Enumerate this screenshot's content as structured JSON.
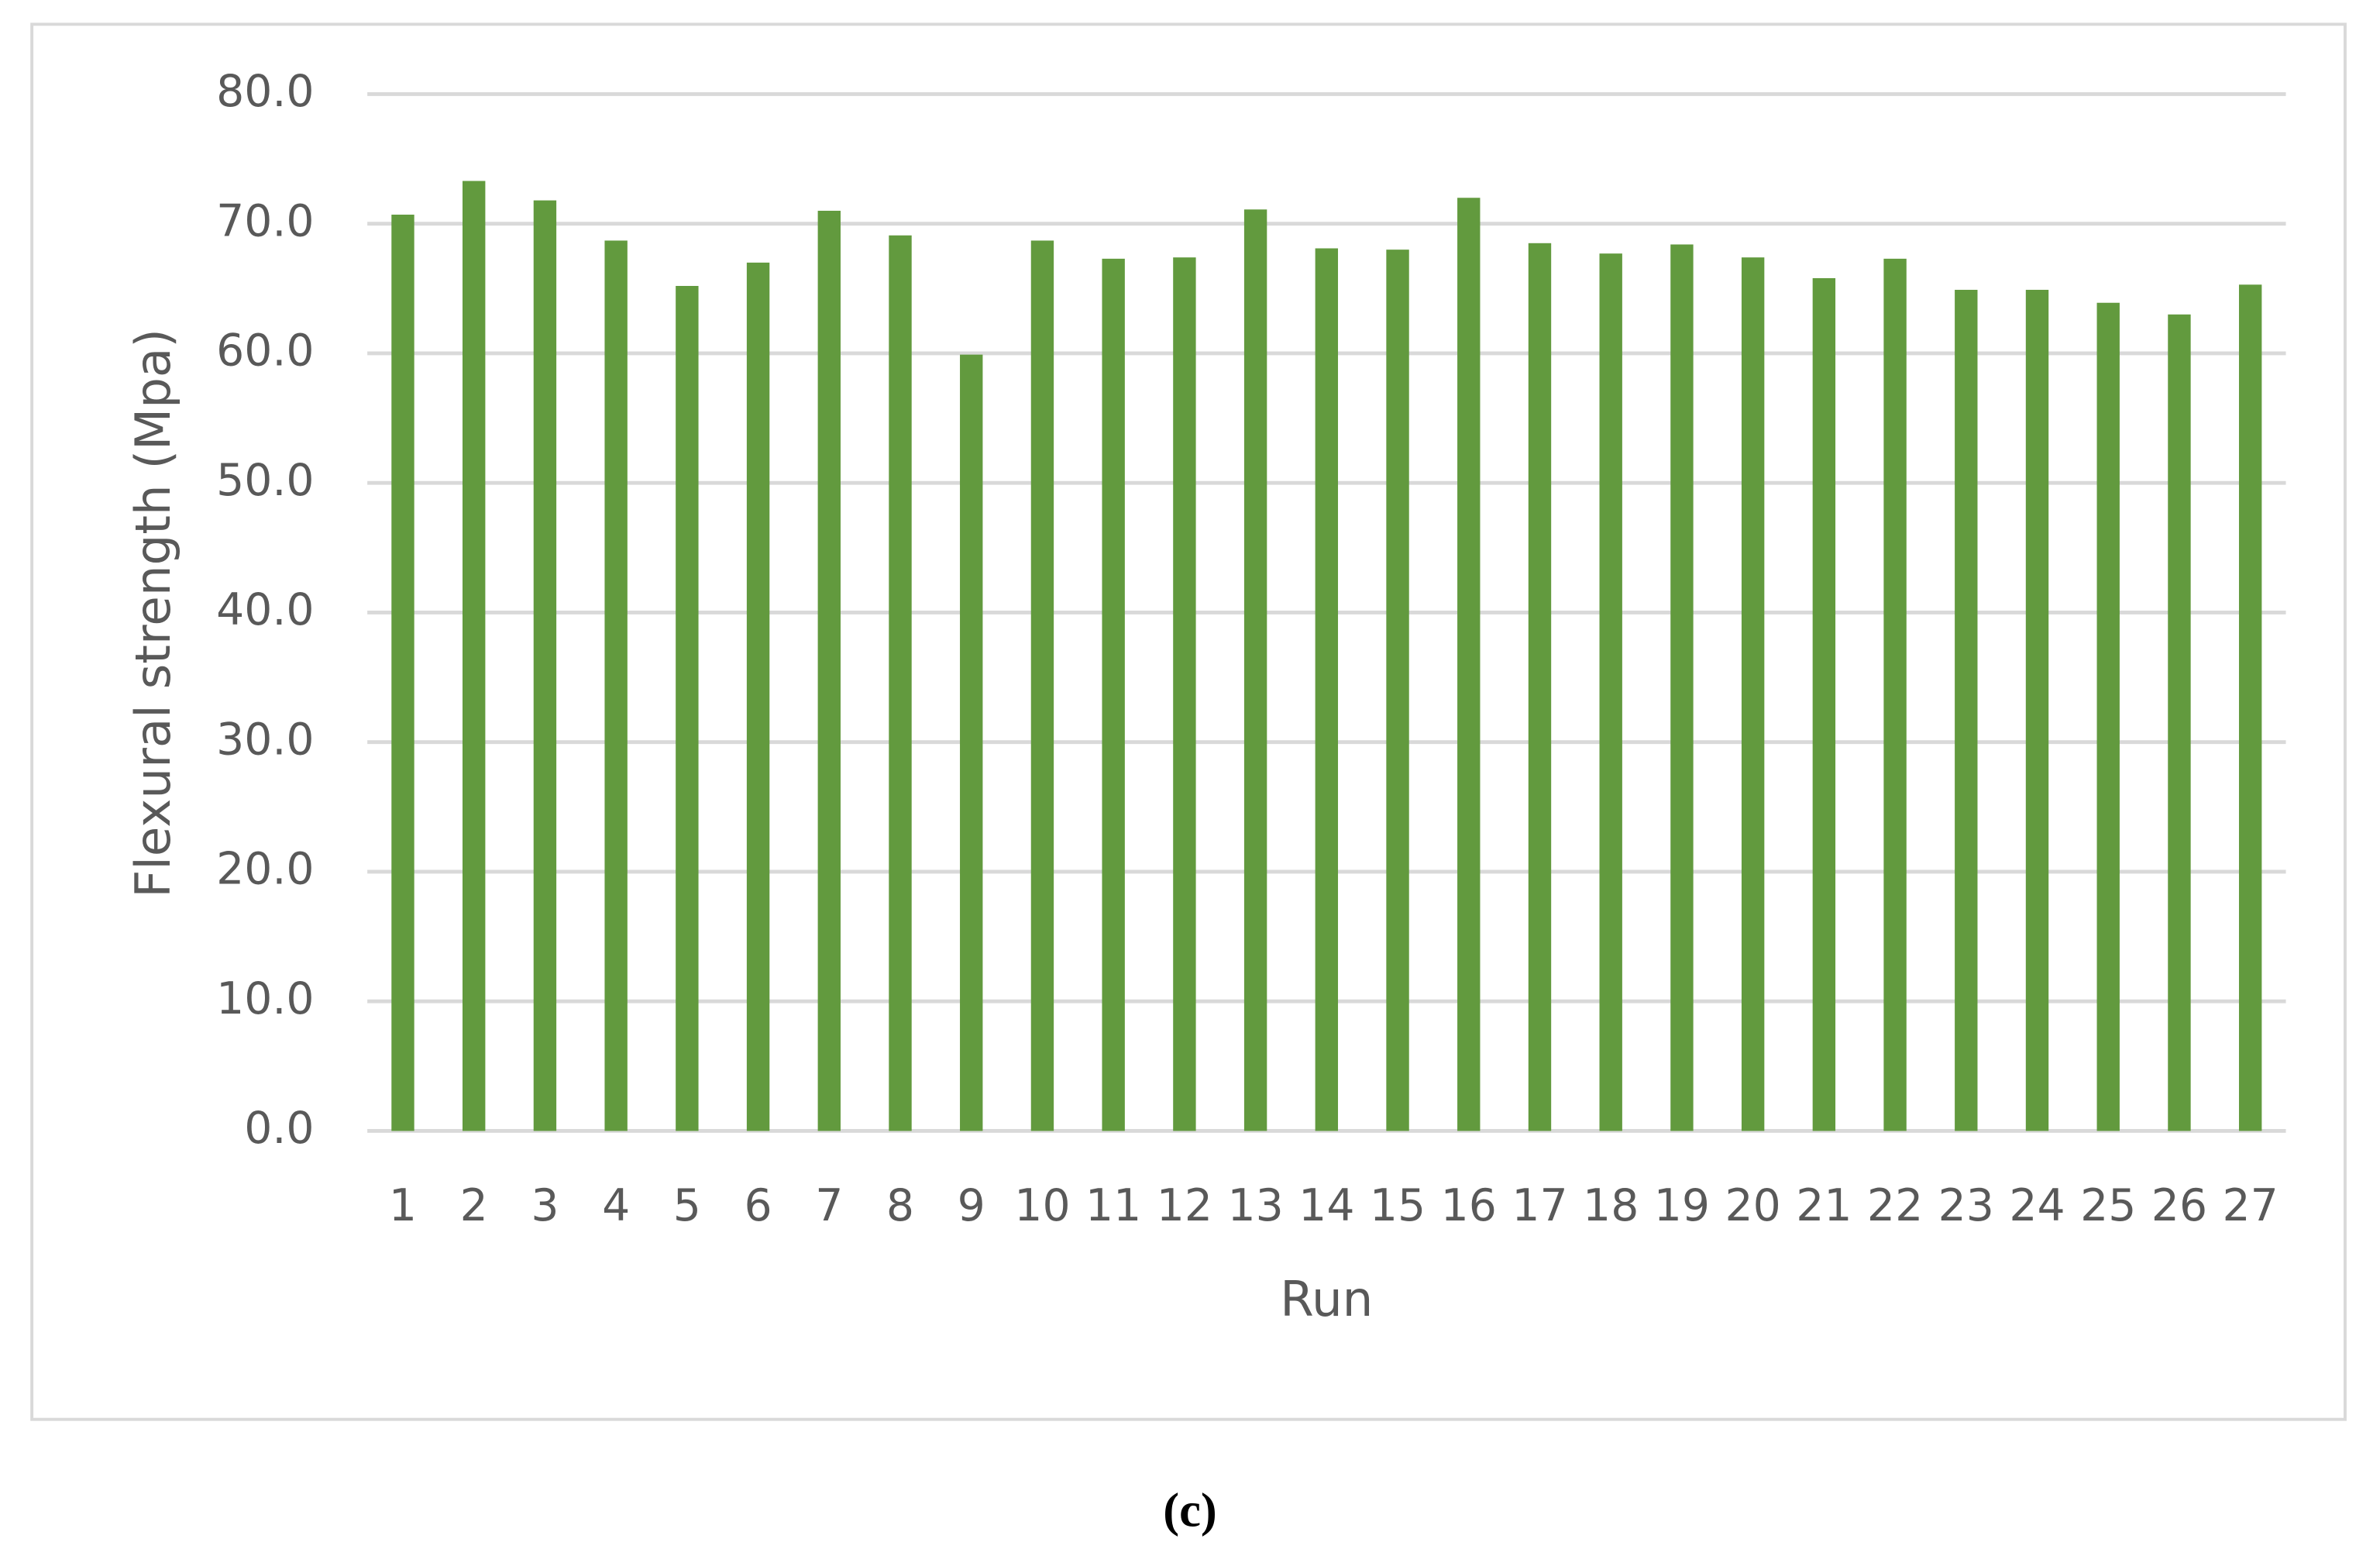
{
  "chart_data": {
    "type": "bar",
    "x_label": "Run",
    "y_label": "Flexural strength (Mpa)",
    "caption": "(c)",
    "categories": [
      "1",
      "2",
      "3",
      "4",
      "5",
      "6",
      "7",
      "8",
      "9",
      "10",
      "11",
      "12",
      "13",
      "14",
      "15",
      "16",
      "17",
      "18",
      "19",
      "20",
      "21",
      "22",
      "23",
      "24",
      "25",
      "26",
      "27"
    ],
    "values": [
      70.7,
      73.3,
      71.8,
      68.7,
      65.2,
      67.0,
      71.0,
      69.1,
      59.9,
      68.7,
      67.3,
      67.4,
      71.1,
      68.1,
      68.0,
      72.0,
      68.5,
      67.7,
      68.4,
      67.4,
      65.8,
      67.3,
      64.9,
      64.9,
      63.9,
      63.0,
      65.3
    ],
    "color": "#629a3e",
    "ylim": [
      0,
      80
    ],
    "yticks": [
      {
        "value": 0,
        "label": "0.0"
      },
      {
        "value": 10,
        "label": "10.0"
      },
      {
        "value": 20,
        "label": "20.0"
      },
      {
        "value": 30,
        "label": "30.0"
      },
      {
        "value": 40,
        "label": "40.0"
      },
      {
        "value": 50,
        "label": "50.0"
      },
      {
        "value": 60,
        "label": "60.0"
      },
      {
        "value": 70,
        "label": "70.0"
      },
      {
        "value": 80,
        "label": "80.0"
      }
    ],
    "grid": true
  }
}
